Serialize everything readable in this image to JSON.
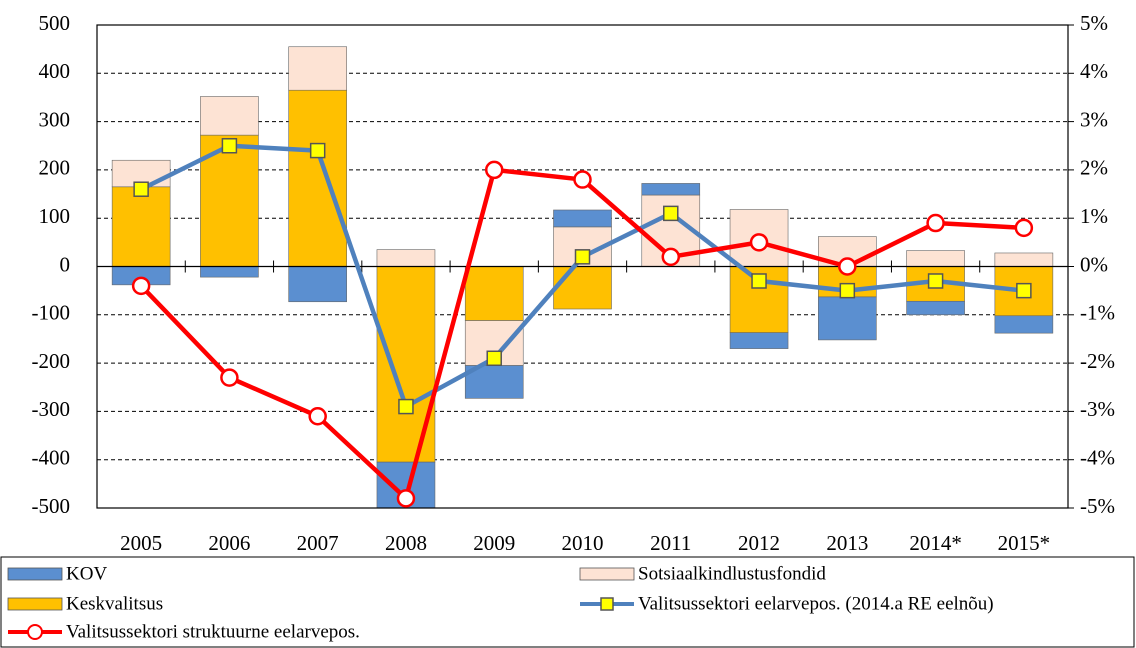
{
  "chart_data": {
    "type": "bar",
    "categories": [
      "2005",
      "2006",
      "2007",
      "2008",
      "2009",
      "2010",
      "2011",
      "2012",
      "2013",
      "2014*",
      "2015*"
    ],
    "series": [
      {
        "name": "KOV",
        "type": "bar",
        "color": "#5b8fd0",
        "values": [
          -38,
          -22,
          -73,
          -95,
          -68,
          35,
          24,
          -33,
          -89,
          -28,
          -36
        ]
      },
      {
        "name": "Sotsiaalkindlustusfondid",
        "type": "bar",
        "color": "#fde3d4",
        "values": [
          55,
          80,
          90,
          35,
          -93,
          82,
          148,
          118,
          62,
          33,
          28
        ]
      },
      {
        "name": "Keskvalitsus",
        "type": "bar",
        "color": "#ffc000",
        "values": [
          165,
          272,
          365,
          -405,
          -112,
          -88,
          0,
          -137,
          -63,
          -72,
          -102
        ]
      },
      {
        "name": "Valitsussektori eelarvepos. (2014.a RE eelnõu)",
        "type": "line",
        "axis": "y2",
        "color": "#4f81bd",
        "marker": "square",
        "marker_color": "#ffff00",
        "values": [
          1.6,
          2.5,
          2.4,
          -2.9,
          -1.9,
          0.2,
          1.1,
          -0.3,
          -0.5,
          -0.3,
          -0.5
        ]
      },
      {
        "name": "Valitsussektori struktuurne eelarvepos.",
        "type": "line",
        "axis": "y2",
        "color": "#ff0000",
        "marker": "circle",
        "marker_color": "#ffffff",
        "values": [
          -0.4,
          -2.3,
          -3.1,
          -4.8,
          2.0,
          1.8,
          0.2,
          0.5,
          0.0,
          0.9,
          0.8
        ]
      }
    ],
    "ylim": [
      -500,
      500
    ],
    "yticks": [
      -500,
      -400,
      -300,
      -200,
      -100,
      0,
      100,
      200,
      300,
      400,
      500
    ],
    "y2lim": [
      -5,
      5
    ],
    "y2ticks": [
      {
        "value": -5,
        "label": "-5%"
      },
      {
        "value": -4,
        "label": "-4%"
      },
      {
        "value": -3,
        "label": "-3%"
      },
      {
        "value": -2,
        "label": "-2%"
      },
      {
        "value": -1,
        "label": "-1%"
      },
      {
        "value": 0,
        "label": "0%"
      },
      {
        "value": 1,
        "label": "1%"
      },
      {
        "value": 2,
        "label": "2%"
      },
      {
        "value": 3,
        "label": "3%"
      },
      {
        "value": 4,
        "label": "4%"
      },
      {
        "value": 5,
        "label": "5%"
      }
    ],
    "grid": true,
    "legend": "bottom"
  }
}
